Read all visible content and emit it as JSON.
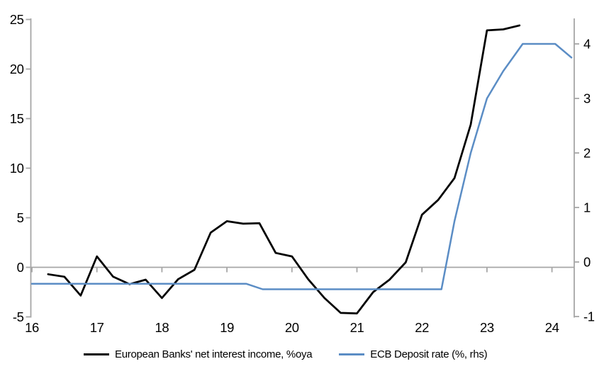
{
  "chart_data": {
    "type": "line",
    "title": "",
    "grid": "zero-line-only",
    "legend_position": "bottom",
    "axis_color": "#A6A6A6",
    "x_axis": {
      "tick_labels": [
        "16",
        "17",
        "18",
        "19",
        "20",
        "21",
        "22",
        "23",
        "24"
      ],
      "tick_years": [
        2016,
        2017,
        2018,
        2019,
        2020,
        2021,
        2022,
        2023,
        2024
      ],
      "range_years": [
        2016.0,
        2024.35
      ]
    },
    "left_axis": {
      "ticks": [
        25,
        20,
        15,
        10,
        5,
        0,
        -5
      ],
      "range": [
        -5,
        25
      ]
    },
    "right_axis": {
      "ticks": [
        4,
        3,
        2,
        1,
        0,
        -1
      ],
      "range": [
        -1,
        4.45
      ]
    },
    "series": [
      {
        "name": "European Banks' net interest income, %oya",
        "axis": "left",
        "color": "#000000",
        "points": [
          [
            2016.25,
            -0.7
          ],
          [
            2016.5,
            -0.95
          ],
          [
            2016.75,
            -2.85
          ],
          [
            2017.0,
            1.1
          ],
          [
            2017.25,
            -0.95
          ],
          [
            2017.5,
            -1.7
          ],
          [
            2017.75,
            -1.25
          ],
          [
            2018.0,
            -3.1
          ],
          [
            2018.25,
            -1.2
          ],
          [
            2018.5,
            -0.25
          ],
          [
            2018.75,
            3.5
          ],
          [
            2019.0,
            4.65
          ],
          [
            2019.25,
            4.4
          ],
          [
            2019.5,
            4.45
          ],
          [
            2019.75,
            1.45
          ],
          [
            2020.0,
            1.1
          ],
          [
            2020.25,
            -1.2
          ],
          [
            2020.5,
            -3.1
          ],
          [
            2020.75,
            -4.6
          ],
          [
            2021.0,
            -4.65
          ],
          [
            2021.25,
            -2.5
          ],
          [
            2021.5,
            -1.25
          ],
          [
            2021.75,
            0.5
          ],
          [
            2022.0,
            5.3
          ],
          [
            2022.25,
            6.8
          ],
          [
            2022.5,
            9.0
          ],
          [
            2022.75,
            14.4
          ],
          [
            2023.0,
            23.9
          ],
          [
            2023.25,
            24.0
          ],
          [
            2023.5,
            24.4
          ]
        ]
      },
      {
        "name": "ECB Deposit rate (%, rhs)",
        "axis": "right",
        "color": "#5B8DC5",
        "points": [
          [
            2016.0,
            -0.4
          ],
          [
            2019.3,
            -0.4
          ],
          [
            2019.55,
            -0.5
          ],
          [
            2022.3,
            -0.5
          ],
          [
            2022.5,
            0.75
          ],
          [
            2022.75,
            2.0
          ],
          [
            2023.0,
            3.0
          ],
          [
            2023.25,
            3.5
          ],
          [
            2023.55,
            4.0
          ],
          [
            2024.05,
            4.0
          ],
          [
            2024.3,
            3.75
          ]
        ]
      }
    ]
  },
  "legend": {
    "items": [
      {
        "label": "European Banks' net interest income, %oya"
      },
      {
        "label": "ECB Deposit rate (%, rhs)"
      }
    ]
  }
}
